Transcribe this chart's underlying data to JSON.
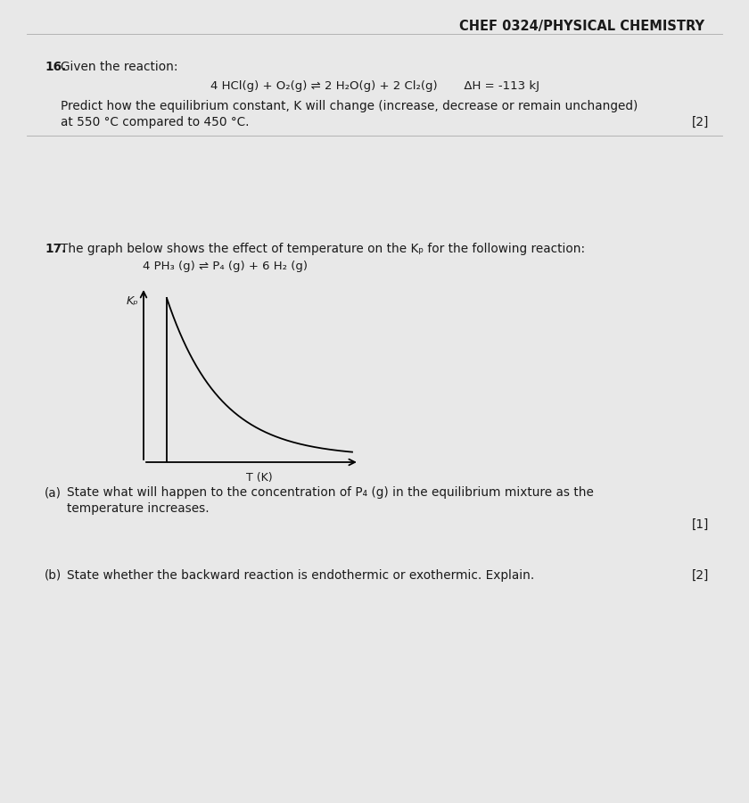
{
  "page_color": "#e8e8e8",
  "header_text": "CHEF 0324/PHYSICAL CHEMISTRY",
  "q16_number": "16.",
  "q16_intro": "Given the reaction:",
  "q16_equation": "4 HCl(g) + O₂(g) ⇌ 2 H₂O(g) + 2 Cl₂(g)       ΔH = -113 kJ",
  "q16_body_line1": "Predict how the equilibrium constant, K will change (increase, decrease or remain unchanged)",
  "q16_body_line2": "at 550 °C compared to 450 °C.",
  "q16_marks": "[2]",
  "q17_number": "17.",
  "q17_intro": "The graph below shows the effect of temperature on the Kₚ for the following reaction:",
  "q17_equation": "4 PH₃ (g) ⇌ P₄ (g) + 6 H₂ (g)",
  "graph_xlabel": "T (K)",
  "graph_ylabel": "Kₚ",
  "q17a_label": "(a)",
  "q17a_line1": "State what will happen to the concentration of P₄ (g) in the equilibrium mixture as the",
  "q17a_line2": "temperature increases.",
  "q17a_marks": "[1]",
  "q17b_label": "(b)",
  "q17b_text": "State whether the backward reaction is endothermic or exothermic. Explain.",
  "q17b_marks": "[2]",
  "text_color": "#1a1a1a",
  "font_size_header": 10.5,
  "font_size_body": 9.8,
  "font_size_eq": 9.5
}
